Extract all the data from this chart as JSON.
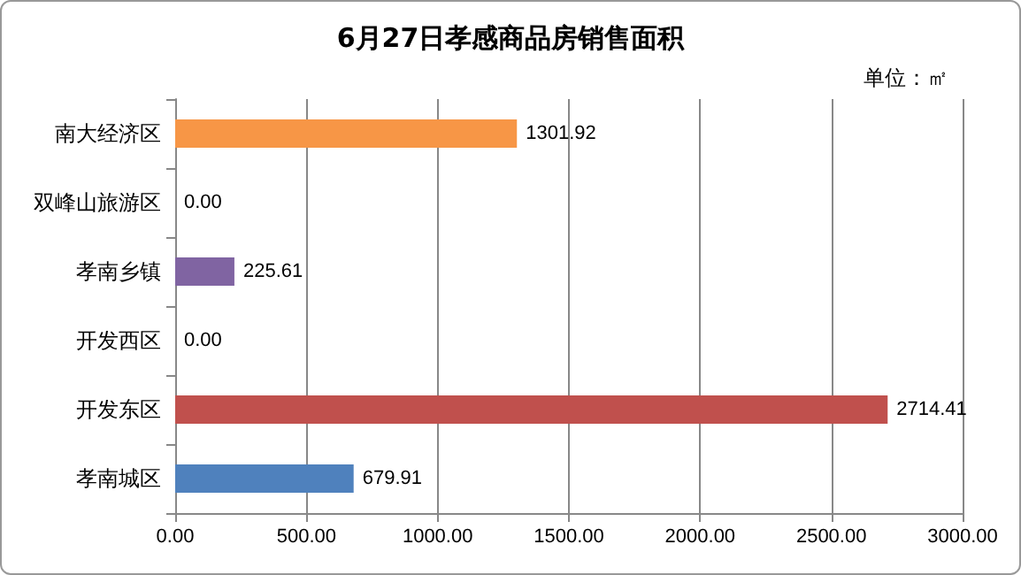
{
  "chart_data": {
    "type": "bar",
    "orientation": "horizontal",
    "title": "6月27日孝感商品房销售面积",
    "subtitle": "单位：㎡",
    "categories": [
      "南大经济区",
      "双峰山旅游区",
      "孝南乡镇",
      "开发西区",
      "开发东区",
      "孝南城区"
    ],
    "values": [
      1301.92,
      0,
      225.61,
      0,
      2714.41,
      679.91
    ],
    "colors": [
      "#f79646",
      "#4f81bd",
      "#8064a2",
      "#4f81bd",
      "#c0504d",
      "#4f81bd"
    ],
    "xlim": [
      0,
      3000
    ],
    "xticks": [
      {
        "value": 0,
        "label": "0.00"
      },
      {
        "value": 500,
        "label": "500.00"
      },
      {
        "value": 1000,
        "label": "1000.00"
      },
      {
        "value": 1500,
        "label": "1500.00"
      },
      {
        "value": 2000,
        "label": "2000.00"
      },
      {
        "value": 2500,
        "label": "2500.00"
      },
      {
        "value": 3000,
        "label": "3000.00"
      }
    ],
    "value_labels": [
      "1301.92",
      "0.00",
      "225.61",
      "0.00",
      "2714.41",
      "679.91"
    ],
    "grid": "x"
  }
}
